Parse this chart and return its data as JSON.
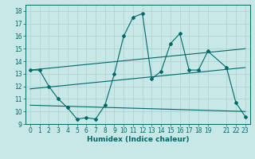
{
  "title": "",
  "xlabel": "Humidex (Indice chaleur)",
  "bg_color": "#c8e8e8",
  "grid_color": "#b0d4d4",
  "line_color": "#006868",
  "xlim": [
    -0.5,
    23.5
  ],
  "ylim": [
    9,
    18.5
  ],
  "yticks": [
    9,
    10,
    11,
    12,
    13,
    14,
    15,
    16,
    17,
    18
  ],
  "xticks": [
    0,
    1,
    2,
    3,
    4,
    5,
    6,
    7,
    8,
    9,
    10,
    11,
    12,
    13,
    14,
    15,
    16,
    17,
    18,
    19,
    21,
    22,
    23
  ],
  "xtick_labels": [
    "0",
    "1",
    "2",
    "3",
    "4",
    "5",
    "6",
    "7",
    "8",
    "9",
    "10",
    "11",
    "12",
    "13",
    "14",
    "15",
    "16",
    "17",
    "18",
    "19",
    "21",
    "22",
    "23"
  ],
  "series_main": {
    "x": [
      0,
      1,
      2,
      3,
      4,
      5,
      6,
      7,
      8,
      9,
      10,
      11,
      12,
      13,
      14,
      15,
      16,
      17,
      18,
      19,
      21,
      22,
      23
    ],
    "y": [
      13.3,
      13.3,
      12.0,
      11.0,
      10.3,
      9.4,
      9.5,
      9.4,
      10.5,
      13.0,
      16.0,
      17.5,
      17.8,
      12.6,
      13.2,
      15.4,
      16.2,
      13.3,
      13.3,
      14.8,
      13.5,
      10.7,
      9.6
    ]
  },
  "series_lines": [
    {
      "x": [
        0,
        23
      ],
      "y": [
        13.3,
        15.0
      ]
    },
    {
      "x": [
        0,
        23
      ],
      "y": [
        11.8,
        13.5
      ]
    },
    {
      "x": [
        0,
        23
      ],
      "y": [
        10.5,
        10.0
      ]
    }
  ],
  "figsize": [
    3.2,
    2.0
  ],
  "dpi": 100
}
